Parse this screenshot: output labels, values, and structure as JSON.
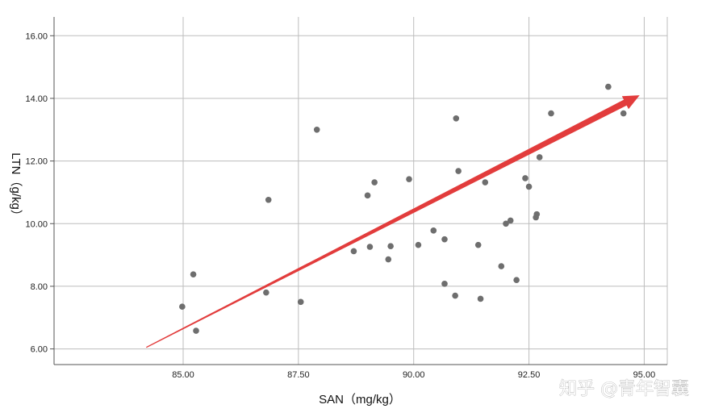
{
  "chart_data": {
    "type": "scatter",
    "xlabel": "SAN（mg/kg）",
    "ylabel": "LTN（g/kg）",
    "xlim": [
      82.2,
      95.5
    ],
    "ylim": [
      5.5,
      16.6
    ],
    "x_ticks": [
      85,
      87.5,
      90,
      92.5,
      95
    ],
    "x_tick_labels": [
      "85.00",
      "87.50",
      "90.00",
      "92.50",
      "95.00"
    ],
    "y_ticks": [
      6,
      8,
      10,
      12,
      14,
      16
    ],
    "y_tick_labels": [
      "6.00",
      "8.00",
      "10.00",
      "12.00",
      "14.00",
      "16.00"
    ],
    "grid": true,
    "point_color": "#6e6e6e",
    "arrow_color": "#e23c3c",
    "points": [
      {
        "x": 84.98,
        "y": 7.35
      },
      {
        "x": 85.22,
        "y": 8.38
      },
      {
        "x": 85.28,
        "y": 6.58
      },
      {
        "x": 86.8,
        "y": 7.8
      },
      {
        "x": 86.85,
        "y": 10.76
      },
      {
        "x": 87.55,
        "y": 7.5
      },
      {
        "x": 87.9,
        "y": 13.0
      },
      {
        "x": 88.7,
        "y": 9.12
      },
      {
        "x": 89.0,
        "y": 10.9
      },
      {
        "x": 89.05,
        "y": 9.26
      },
      {
        "x": 89.15,
        "y": 11.32
      },
      {
        "x": 89.45,
        "y": 8.86
      },
      {
        "x": 89.5,
        "y": 9.28
      },
      {
        "x": 89.9,
        "y": 11.42
      },
      {
        "x": 90.1,
        "y": 9.32
      },
      {
        "x": 90.43,
        "y": 9.78
      },
      {
        "x": 90.67,
        "y": 9.5
      },
      {
        "x": 90.67,
        "y": 8.08
      },
      {
        "x": 90.9,
        "y": 7.7
      },
      {
        "x": 90.92,
        "y": 13.36
      },
      {
        "x": 90.97,
        "y": 11.68
      },
      {
        "x": 91.4,
        "y": 9.32
      },
      {
        "x": 91.45,
        "y": 7.6
      },
      {
        "x": 91.55,
        "y": 11.32
      },
      {
        "x": 91.9,
        "y": 8.64
      },
      {
        "x": 92.0,
        "y": 10.0
      },
      {
        "x": 92.1,
        "y": 10.1
      },
      {
        "x": 92.23,
        "y": 8.2
      },
      {
        "x": 92.42,
        "y": 11.45
      },
      {
        "x": 92.5,
        "y": 11.18
      },
      {
        "x": 92.65,
        "y": 10.2
      },
      {
        "x": 92.67,
        "y": 10.3
      },
      {
        "x": 92.73,
        "y": 12.12
      },
      {
        "x": 92.98,
        "y": 13.52
      },
      {
        "x": 94.22,
        "y": 14.37
      },
      {
        "x": 94.55,
        "y": 13.52
      }
    ],
    "trend_arrow": {
      "from": {
        "x": 84.2,
        "y": 6.05
      },
      "to": {
        "x": 94.9,
        "y": 14.1
      }
    }
  },
  "watermark": "知乎 @青年智囊"
}
